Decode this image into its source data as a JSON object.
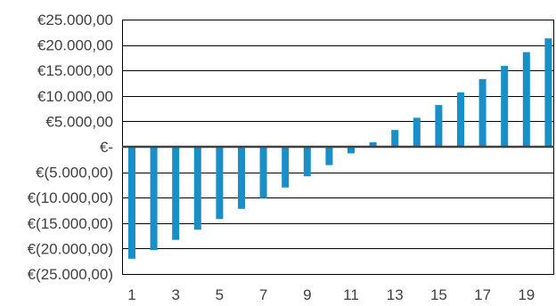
{
  "chart_data": {
    "type": "bar",
    "x": [
      1,
      2,
      3,
      4,
      5,
      6,
      7,
      8,
      9,
      10,
      11,
      12,
      13,
      14,
      15,
      16,
      17,
      18,
      19,
      20
    ],
    "x_tick_labels": [
      "1",
      "3",
      "5",
      "7",
      "9",
      "11",
      "13",
      "15",
      "17",
      "19"
    ],
    "x_tick_values": [
      1,
      3,
      5,
      7,
      9,
      11,
      13,
      15,
      17,
      19
    ],
    "values": [
      -22000,
      -20300,
      -18300,
      -16300,
      -14200,
      -12200,
      -10100,
      -8000,
      -5800,
      -3600,
      -1300,
      900,
      3300,
      5700,
      8200,
      10700,
      13300,
      15900,
      18600,
      21300
    ],
    "ylim": [
      -25000,
      25000
    ],
    "y_ticks": [
      25000,
      20000,
      15000,
      10000,
      5000,
      0,
      -5000,
      -10000,
      -15000,
      -20000,
      -25000
    ],
    "y_tick_labels": [
      "€25.000,00",
      "€20.000,00",
      "€15.000,00",
      "€10.000,00",
      "€5.000,00",
      "€-",
      "€(5.000,00)",
      "€(10.000,00)",
      "€(15.000,00)",
      "€(20.000,00)",
      "€(25.000,00)"
    ],
    "title": "",
    "xlabel": "",
    "ylabel": "",
    "grid": true,
    "bar_color": "#1a8fc7",
    "gridline_color": "#000000",
    "frame_color": "#000000",
    "zero_line_color": "#404040"
  }
}
